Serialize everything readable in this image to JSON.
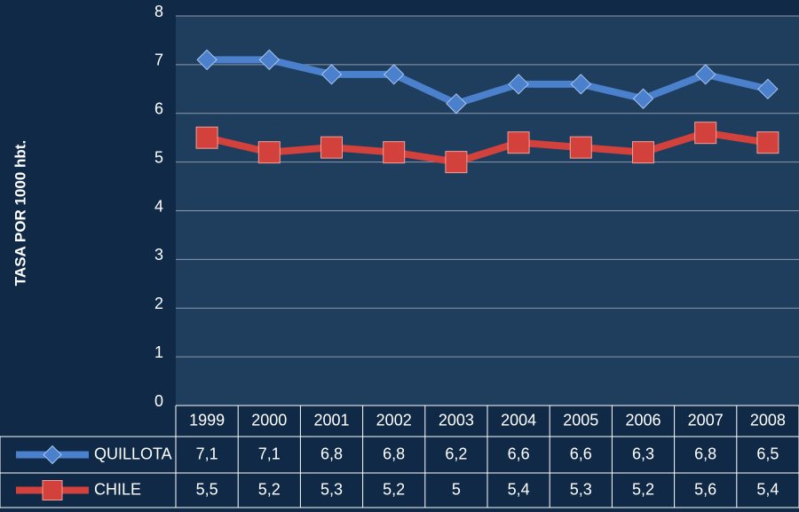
{
  "chart_data": {
    "type": "line",
    "y_axis_label": "TASA  POR 1000 hbt.",
    "categories": [
      "1999",
      "2000",
      "2001",
      "2002",
      "2003",
      "2004",
      "2005",
      "2006",
      "2007",
      "2008"
    ],
    "series": [
      {
        "name": "QUILLOTA",
        "color": "#4a80cc",
        "marker": "diamond",
        "values": [
          7.1,
          7.1,
          6.8,
          6.8,
          6.2,
          6.6,
          6.6,
          6.3,
          6.8,
          6.5
        ],
        "value_labels": [
          "7,1",
          "7,1",
          "6,8",
          "6,8",
          "6,2",
          "6,6",
          "6,6",
          "6,3",
          "6,8",
          "6,5"
        ]
      },
      {
        "name": "CHILE",
        "color": "#d2413c",
        "marker": "square",
        "values": [
          5.5,
          5.2,
          5.3,
          5.2,
          5,
          5.4,
          5.3,
          5.2,
          5.6,
          5.4
        ],
        "value_labels": [
          "5,5",
          "5,2",
          "5,3",
          "5,2",
          "5",
          "5,4",
          "5,3",
          "5,2",
          "5,6",
          "5,4"
        ]
      }
    ],
    "ylim": [
      0,
      8
    ],
    "yticks": [
      0,
      1,
      2,
      3,
      4,
      5,
      6,
      7,
      8
    ],
    "grid": true,
    "data_table": true
  }
}
